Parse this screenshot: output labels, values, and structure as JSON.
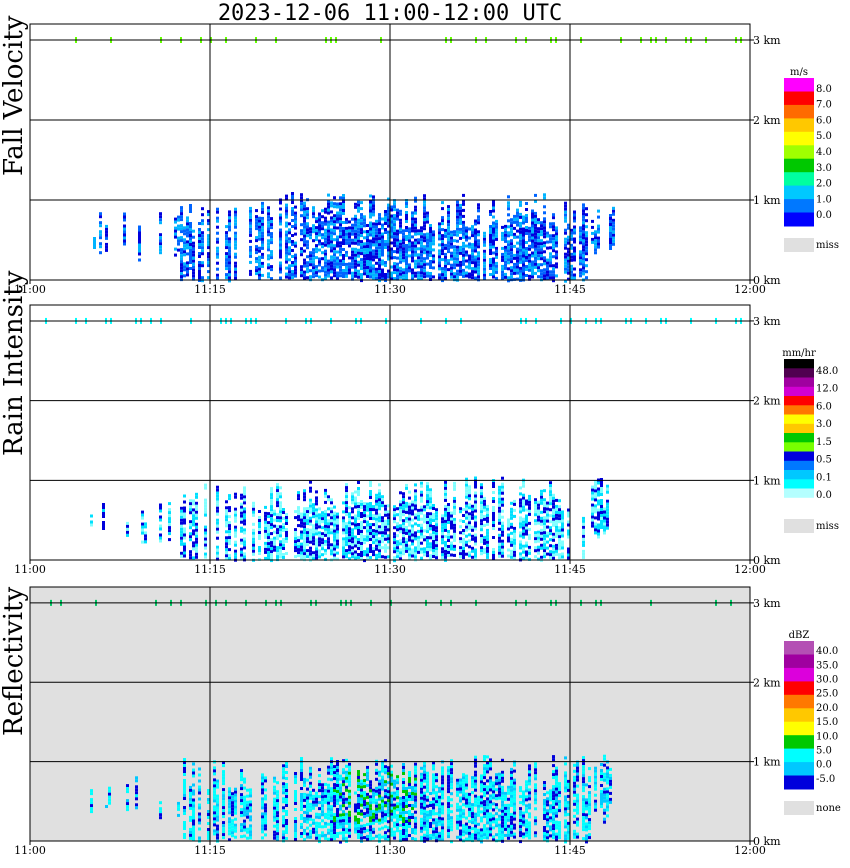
{
  "title": "2023-12-06   11:00-12:00 UTC",
  "chart_data": [
    {
      "type": "heatmap",
      "title": "Fall Velocity",
      "ylabel": "Fall Velocity",
      "x_tick_labels": [
        "11:00",
        "11:15",
        "11:30",
        "11:45",
        "12:00"
      ],
      "y_tick_labels": [
        "0 km",
        "1 km",
        "2 km",
        "3 km"
      ],
      "ylim_km": [
        0,
        3.2
      ],
      "colorbar": {
        "unit": "m/s",
        "labels": [
          "8.0",
          "7.0",
          "6.0",
          "5.0",
          "4.0",
          "3.0",
          "2.0",
          "1.0",
          "0.0"
        ],
        "colors": [
          "#ff00ff",
          "#ff0000",
          "#ff6a00",
          "#ffc800",
          "#ffff00",
          "#a0ff00",
          "#00c800",
          "#00ffa0",
          "#00c8ff",
          "#0078ff",
          "#0000ff"
        ],
        "missing_label": "miss",
        "missing_color": "#e0e0e0"
      },
      "echo_layer_km": [
        0.0,
        1.1
      ],
      "dominant_colors": [
        "#0064ff",
        "#0000dd",
        "#00b4ff"
      ]
    },
    {
      "type": "heatmap",
      "title": "Rain Intensity",
      "ylabel": "Rain Intensity",
      "x_tick_labels": [
        "11:00",
        "11:15",
        "11:30",
        "11:45",
        "12:00"
      ],
      "y_tick_labels": [
        "0 km",
        "1 km",
        "2 km",
        "3 km"
      ],
      "ylim_km": [
        0,
        3.2
      ],
      "colorbar": {
        "unit": "mm/hr",
        "labels": [
          "48.0",
          "12.0",
          "6.0",
          "3.0",
          "1.5",
          "0.5",
          "0.1",
          "0.0"
        ],
        "colors": [
          "#000000",
          "#500050",
          "#a000a0",
          "#d200d2",
          "#ff0000",
          "#ff7800",
          "#ffff00",
          "#ffc800",
          "#00c800",
          "#78ff00",
          "#0000dc",
          "#0078ff",
          "#00c8ff",
          "#00ffff",
          "#b4ffff",
          "#ffffff"
        ],
        "missing_label": "miss",
        "missing_color": "#e0e0e0"
      },
      "echo_layer_km": [
        0.0,
        1.05
      ],
      "dominant_colors": [
        "#80ffff",
        "#00e0ff",
        "#0000dc"
      ]
    },
    {
      "type": "heatmap",
      "title": "Reflectivity",
      "ylabel": "Reflectivity",
      "x_tick_labels": [
        "11:00",
        "11:15",
        "11:30",
        "11:45",
        "12:00"
      ],
      "y_tick_labels": [
        "0 km",
        "1 km",
        "2 km",
        "3 km"
      ],
      "ylim_km": [
        0,
        3.2
      ],
      "background_color": "#e0e0e0",
      "colorbar": {
        "unit": "dBZ",
        "labels": [
          "40.0",
          "35.0",
          "30.0",
          "25.0",
          "20.0",
          "15.0",
          "10.0",
          "5.0",
          "0.0",
          "-5.0"
        ],
        "colors": [
          "#b450b4",
          "#a000a0",
          "#dc00dc",
          "#ff0000",
          "#ff7800",
          "#ffc800",
          "#ffff00",
          "#00c800",
          "#00ffff",
          "#00c8ff",
          "#0000dc"
        ],
        "missing_label": "none",
        "missing_color": "#e0e0e0"
      },
      "echo_layer_km": [
        0.0,
        1.1
      ],
      "dominant_colors": [
        "#00ffff",
        "#00c8ff",
        "#0000dc",
        "#00c800"
      ]
    }
  ]
}
